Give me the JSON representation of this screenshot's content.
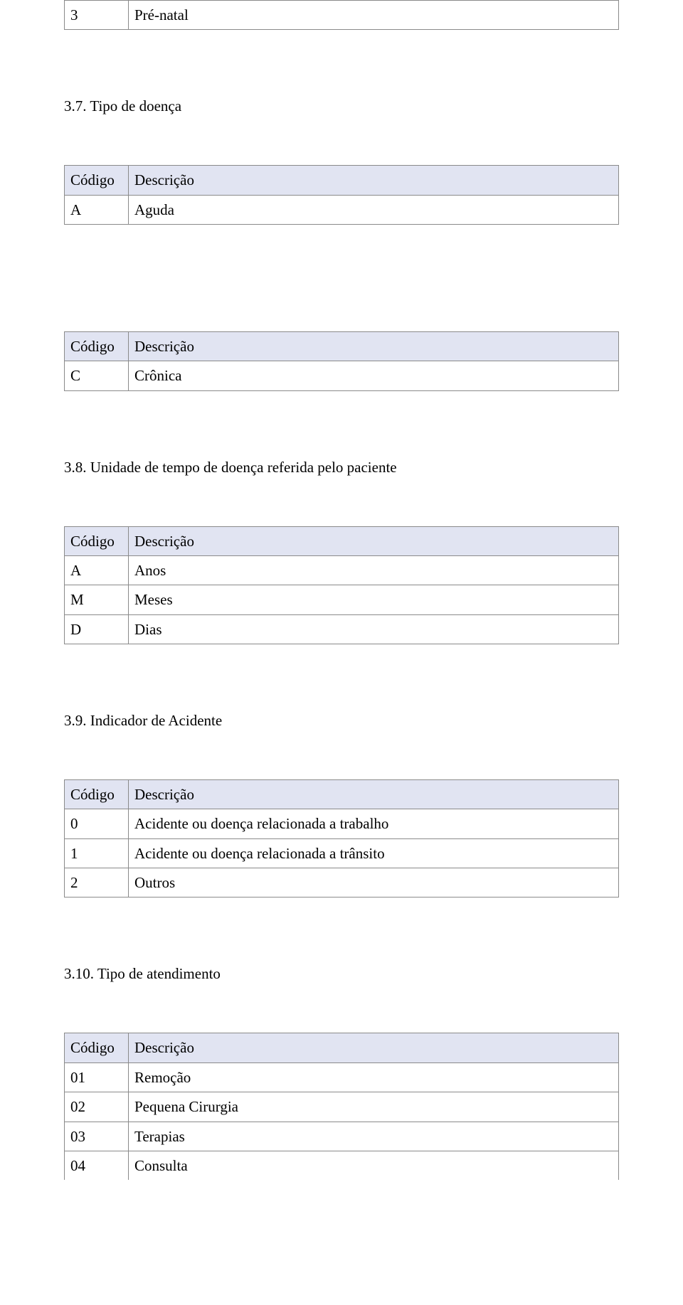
{
  "colors": {
    "header_bg": "#e1e4f2",
    "border": "#8a8a8a",
    "text": "#000000",
    "page_bg": "#ffffff"
  },
  "typography": {
    "font_family": "Times New Roman",
    "body_fontsize_pt": 16
  },
  "top_table": {
    "columns": [
      "Código",
      "Descrição"
    ],
    "rows": [
      {
        "code": "3",
        "desc": "Pré-natal"
      }
    ]
  },
  "section_37": {
    "heading": "3.7. Tipo de doença",
    "table_a": {
      "columns": [
        "Código",
        "Descrição"
      ],
      "rows": [
        {
          "code": "A",
          "desc": "Aguda"
        }
      ]
    },
    "table_c": {
      "columns": [
        "Código",
        "Descrição"
      ],
      "rows": [
        {
          "code": "C",
          "desc": "Crônica"
        }
      ]
    }
  },
  "section_38": {
    "heading": "3.8. Unidade de tempo de doença referida pelo paciente",
    "table": {
      "columns": [
        "Código",
        "Descrição"
      ],
      "rows": [
        {
          "code": "A",
          "desc": "Anos"
        },
        {
          "code": "M",
          "desc": "Meses"
        },
        {
          "code": "D",
          "desc": "Dias"
        }
      ]
    }
  },
  "section_39": {
    "heading": "3.9. Indicador de Acidente",
    "table": {
      "columns": [
        "Código",
        "Descrição"
      ],
      "rows": [
        {
          "code": "0",
          "desc": "Acidente ou doença relacionada a trabalho"
        },
        {
          "code": "1",
          "desc": "Acidente ou doença relacionada a trânsito"
        },
        {
          "code": "2",
          "desc": "Outros"
        }
      ]
    }
  },
  "section_310": {
    "heading": "3.10. Tipo de atendimento",
    "table": {
      "columns": [
        "Código",
        "Descrição"
      ],
      "rows": [
        {
          "code": "01",
          "desc": "Remoção"
        },
        {
          "code": "02",
          "desc": "Pequena Cirurgia"
        },
        {
          "code": "03",
          "desc": "Terapias"
        },
        {
          "code": "04",
          "desc": "Consulta"
        }
      ]
    }
  }
}
